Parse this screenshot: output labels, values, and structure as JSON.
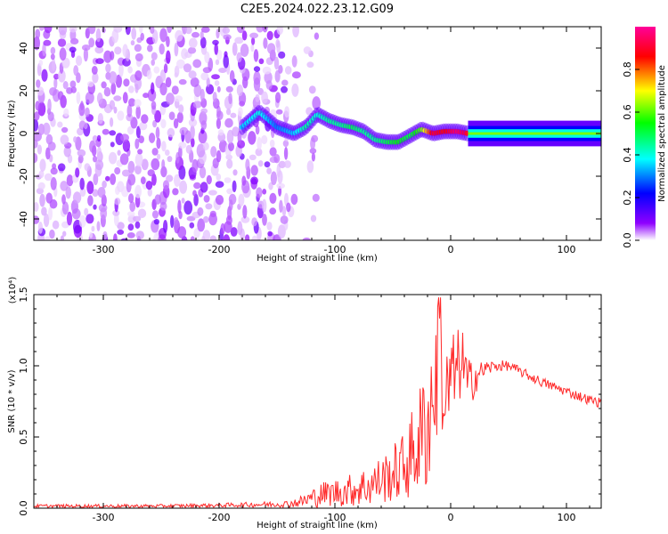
{
  "title": "C2E5.2024.022.23.12.G09",
  "chart_data": [
    {
      "type": "heatmap",
      "title": "C2E5.2024.022.23.12.G09",
      "xlabel": "Height of straight line (km)",
      "ylabel": "Frequency (Hz)",
      "xlim": [
        -360,
        130
      ],
      "ylim": [
        -50,
        50
      ],
      "x_ticks": [
        -300,
        -200,
        -100,
        0,
        100
      ],
      "y_ticks": [
        -40,
        -20,
        0,
        20,
        40
      ],
      "colorbar": {
        "label": "Normalized spectral amplitude",
        "range": [
          0,
          1
        ],
        "ticks": [
          "0.0",
          "0.2",
          "0.4",
          "0.6",
          "0.8"
        ],
        "colors": [
          "#ffffff",
          "#8f00ff",
          "#0000ff",
          "#00ffff",
          "#00ff00",
          "#ffff00",
          "#ff0000",
          "#ff0099"
        ]
      },
      "noise_region_x": [
        -360,
        -130
      ],
      "noise_x_positions": [
        -355,
        -345,
        -333,
        -322,
        -311,
        -300,
        -289,
        -278,
        -267,
        -256,
        -245,
        -234,
        -223,
        -212,
        -201,
        -190,
        -179,
        -168,
        -157,
        -146,
        -137,
        -120
      ],
      "signal_ridge": {
        "x": [
          -180,
          -165,
          -150,
          -135,
          -125,
          -115,
          -105,
          -95,
          -85,
          -75,
          -65,
          -55,
          -45,
          -35,
          -25,
          -15,
          -5,
          5,
          15,
          30,
          60,
          100,
          130
        ],
        "y": [
          3,
          10,
          3,
          0,
          3,
          9,
          6,
          4,
          3,
          1,
          -3,
          -4,
          -4,
          -1,
          2,
          0,
          1,
          1,
          0,
          0,
          0,
          0,
          0
        ],
        "amplitude": [
          0.35,
          0.4,
          0.3,
          0.35,
          0.45,
          0.4,
          0.45,
          0.45,
          0.5,
          0.45,
          0.45,
          0.5,
          0.55,
          0.5,
          0.6,
          0.9,
          0.85,
          0.95,
          0.9,
          0.5,
          0.45,
          0.45,
          0.45
        ]
      }
    },
    {
      "type": "line",
      "xlabel": "Height of straight line (km)",
      "ylabel": "SNR (10 * v/v)",
      "y_multiplier": "(x10⁴)",
      "xlim": [
        -360,
        130
      ],
      "ylim": [
        0,
        15000
      ],
      "x_ticks": [
        -300,
        -200,
        -100,
        0,
        100
      ],
      "y_tick_labels": [
        "0.0",
        "0.5",
        "1.0",
        "1.5"
      ],
      "color": "#ff2a2a",
      "x": [
        -360,
        -300,
        -250,
        -200,
        -170,
        -140,
        -130,
        -120,
        -110,
        -100,
        -90,
        -80,
        -70,
        -60,
        -50,
        -40,
        -30,
        -20,
        -15,
        -10,
        -5,
        0,
        5,
        10,
        15,
        20,
        25,
        30,
        40,
        50,
        60,
        70,
        80,
        90,
        100,
        110,
        120,
        130
      ],
      "y": [
        150,
        150,
        150,
        200,
        250,
        300,
        450,
        700,
        1000,
        1100,
        1200,
        1400,
        1600,
        2000,
        2400,
        3000,
        4200,
        6000,
        8000,
        10000,
        7000,
        9000,
        9500,
        10500,
        8500,
        9200,
        9500,
        9800,
        10000,
        10000,
        9600,
        9200,
        8800,
        8500,
        8200,
        7900,
        7600,
        7400
      ],
      "noise_amplitude": [
        120,
        120,
        120,
        150,
        180,
        250,
        400,
        700,
        900,
        1000,
        1100,
        1300,
        1500,
        1700,
        2000,
        2500,
        3500,
        5000,
        5000,
        5000,
        4000,
        3500,
        3000,
        2500,
        2000,
        1500,
        800,
        600,
        400,
        350,
        350,
        350,
        350,
        350,
        350,
        350,
        350,
        350
      ]
    }
  ]
}
